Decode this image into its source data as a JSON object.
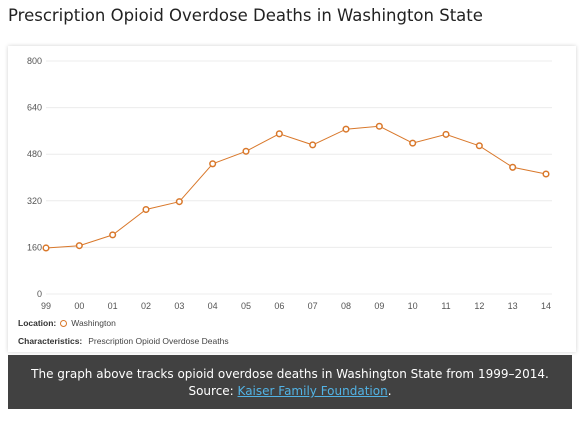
{
  "title": "Prescription Opioid Overdose Deaths in Washington State",
  "location_label": "Location:",
  "location_value": "Washington",
  "characteristics_label": "Characteristics:",
  "characteristics_value": "Prescription Opioid Overdose Deaths",
  "caption": {
    "line1": "The graph above tracks opioid overdose deaths in Washington State from 1999–2014.",
    "source_prefix": "Source: ",
    "source_link": "Kaiser Family Foundation",
    "source_suffix": "."
  },
  "colors": {
    "series": "#d9782b",
    "caption_bg": "#414141",
    "link": "#52b3e5"
  },
  "chart_data": {
    "type": "line",
    "title": "Prescription Opioid Overdose Deaths in Washington State",
    "xlabel": "",
    "ylabel": "",
    "categories": [
      "99",
      "00",
      "01",
      "02",
      "03",
      "04",
      "05",
      "06",
      "07",
      "08",
      "09",
      "10",
      "11",
      "12",
      "13",
      "14"
    ],
    "series": [
      {
        "name": "Washington",
        "values": [
          158,
          166,
          203,
          290,
          317,
          447,
          490,
          550,
          512,
          566,
          576,
          518,
          548,
          509,
          435,
          412
        ]
      }
    ],
    "ylim": [
      0,
      800
    ],
    "yticks": [
      "0",
      "160",
      "320",
      "480",
      "640",
      "800"
    ],
    "grid": true,
    "legend": "bottom-left"
  }
}
